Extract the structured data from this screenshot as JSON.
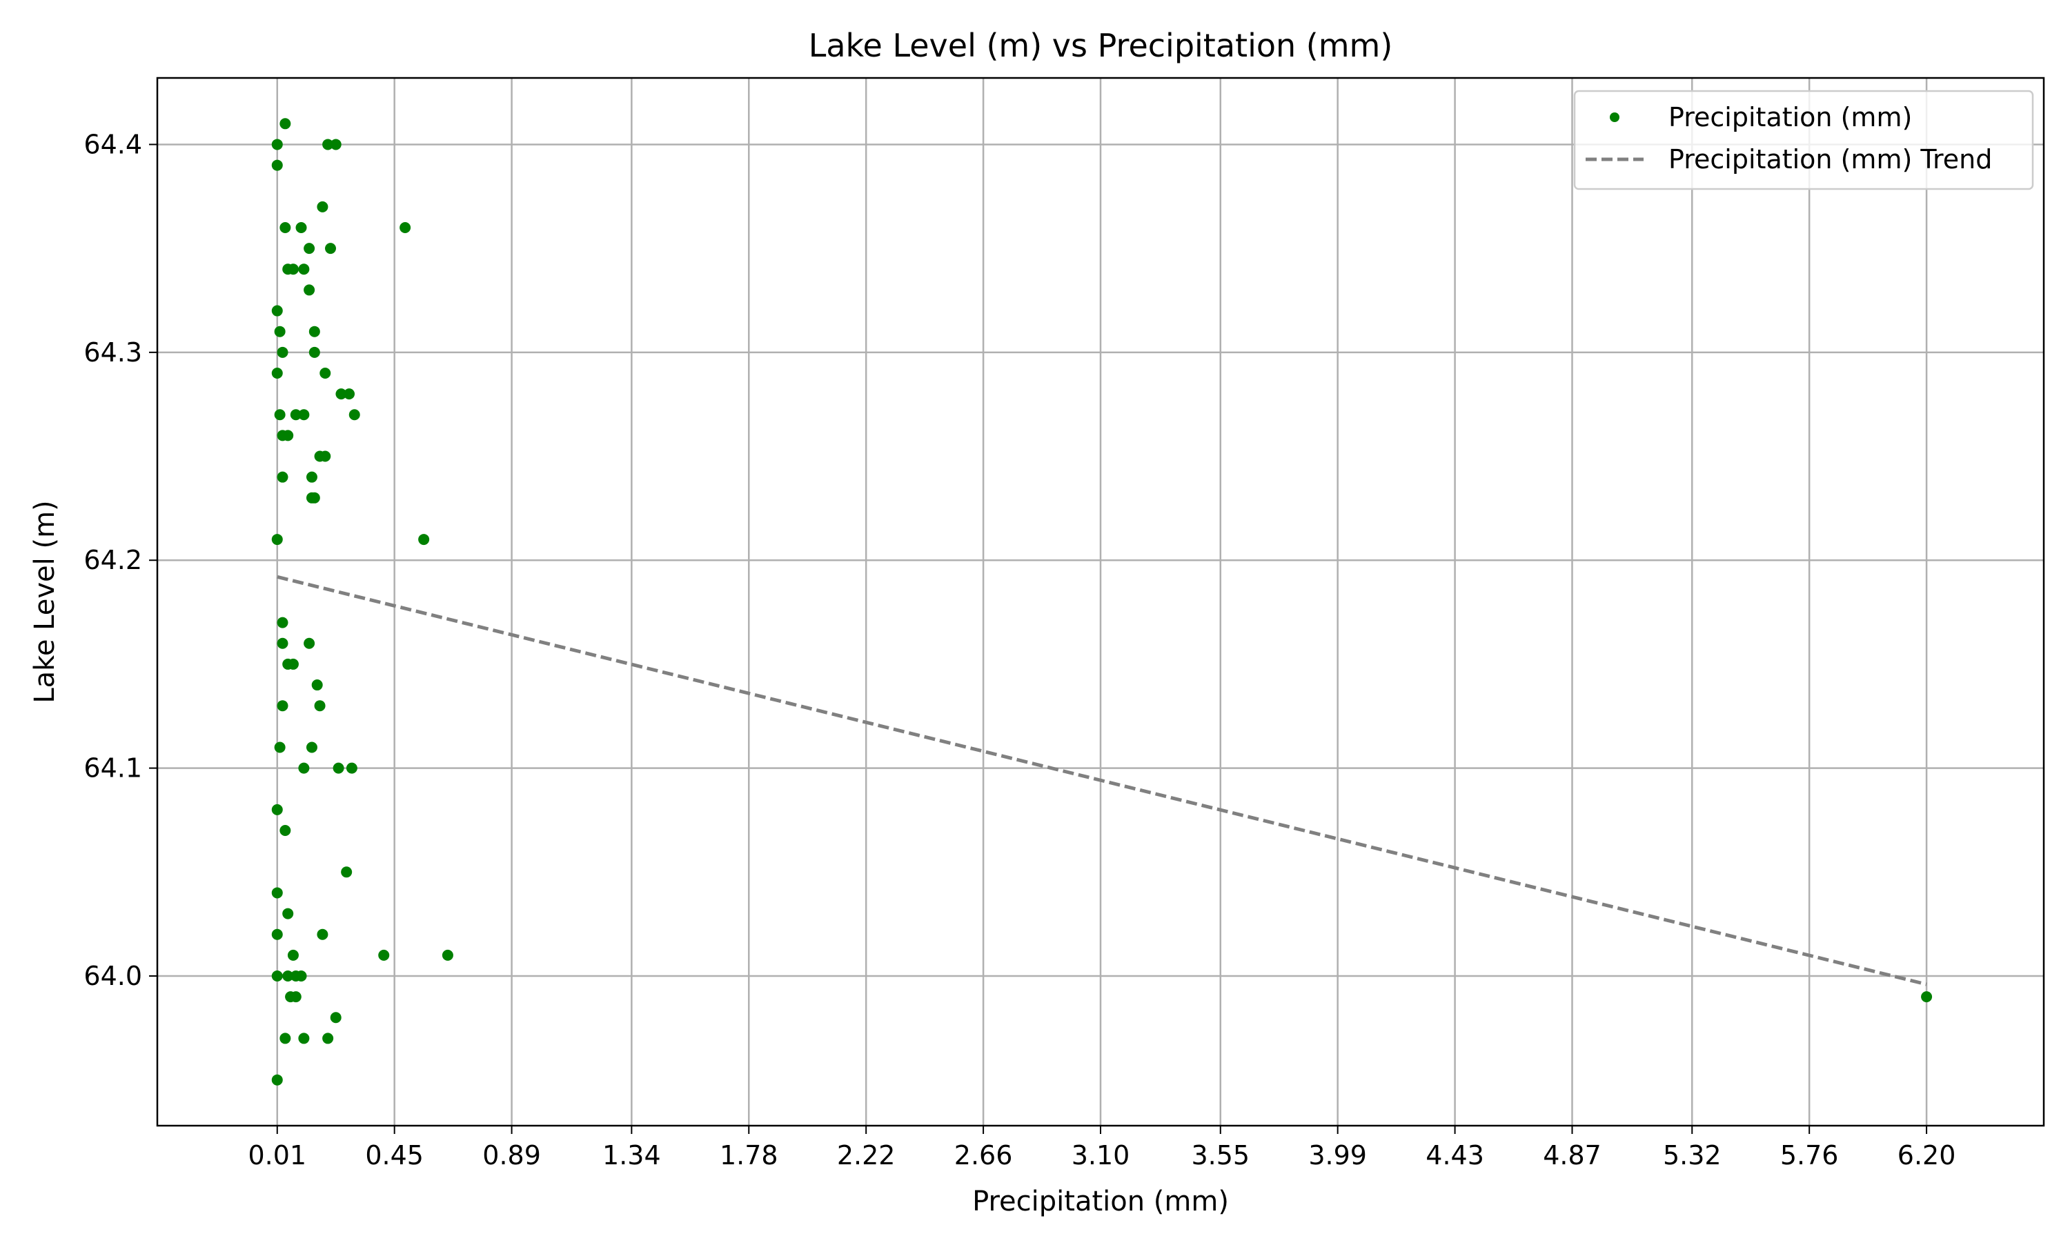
{
  "chart_data": {
    "type": "scatter",
    "title": "Lake Level (m) vs Precipitation (mm)",
    "xlabel": "Precipitation (mm)",
    "ylabel": "Lake Level (m)",
    "xlim": [
      -0.44,
      6.64
    ],
    "ylim": [
      63.928,
      64.432
    ],
    "x_ticks": [
      0.01,
      0.45,
      0.89,
      1.34,
      1.78,
      2.22,
      2.66,
      3.1,
      3.55,
      3.99,
      4.43,
      4.87,
      5.32,
      5.76,
      6.2
    ],
    "x_tick_labels": [
      "0.01",
      "0.45",
      "0.89",
      "1.34",
      "1.78",
      "2.22",
      "2.66",
      "3.10",
      "3.55",
      "3.99",
      "4.43",
      "4.87",
      "5.32",
      "5.76",
      "6.20"
    ],
    "y_ticks": [
      64.0,
      64.1,
      64.2,
      64.3,
      64.4
    ],
    "y_tick_labels": [
      "64.0",
      "64.1",
      "64.2",
      "64.3",
      "64.4"
    ],
    "grid": true,
    "legend_position": "top-right",
    "series": [
      {
        "name": "Precipitation (mm)",
        "type": "scatter",
        "color": "#008000",
        "points": [
          [
            0.04,
            64.41
          ],
          [
            0.01,
            64.4
          ],
          [
            0.2,
            64.4
          ],
          [
            0.23,
            64.4
          ],
          [
            0.01,
            64.39
          ],
          [
            0.18,
            64.37
          ],
          [
            0.04,
            64.36
          ],
          [
            0.1,
            64.36
          ],
          [
            0.49,
            64.36
          ],
          [
            0.13,
            64.35
          ],
          [
            0.21,
            64.35
          ],
          [
            0.05,
            64.34
          ],
          [
            0.07,
            64.34
          ],
          [
            0.11,
            64.34
          ],
          [
            0.13,
            64.33
          ],
          [
            0.01,
            64.32
          ],
          [
            0.02,
            64.31
          ],
          [
            0.15,
            64.31
          ],
          [
            0.03,
            64.3
          ],
          [
            0.15,
            64.3
          ],
          [
            0.01,
            64.29
          ],
          [
            0.19,
            64.29
          ],
          [
            0.25,
            64.28
          ],
          [
            0.28,
            64.28
          ],
          [
            0.02,
            64.27
          ],
          [
            0.08,
            64.27
          ],
          [
            0.11,
            64.27
          ],
          [
            0.3,
            64.27
          ],
          [
            0.03,
            64.26
          ],
          [
            0.05,
            64.26
          ],
          [
            0.17,
            64.25
          ],
          [
            0.19,
            64.25
          ],
          [
            0.03,
            64.24
          ],
          [
            0.14,
            64.24
          ],
          [
            0.14,
            64.23
          ],
          [
            0.15,
            64.23
          ],
          [
            0.01,
            64.21
          ],
          [
            0.56,
            64.21
          ],
          [
            0.03,
            64.17
          ],
          [
            0.03,
            64.16
          ],
          [
            0.13,
            64.16
          ],
          [
            0.05,
            64.15
          ],
          [
            0.07,
            64.15
          ],
          [
            0.16,
            64.14
          ],
          [
            0.03,
            64.13
          ],
          [
            0.17,
            64.13
          ],
          [
            0.02,
            64.11
          ],
          [
            0.14,
            64.11
          ],
          [
            0.11,
            64.1
          ],
          [
            0.24,
            64.1
          ],
          [
            0.29,
            64.1
          ],
          [
            0.01,
            64.08
          ],
          [
            0.04,
            64.07
          ],
          [
            0.27,
            64.05
          ],
          [
            0.01,
            64.04
          ],
          [
            0.05,
            64.03
          ],
          [
            0.01,
            64.02
          ],
          [
            0.18,
            64.02
          ],
          [
            0.07,
            64.01
          ],
          [
            0.41,
            64.01
          ],
          [
            0.65,
            64.01
          ],
          [
            0.01,
            64.0
          ],
          [
            0.05,
            64.0
          ],
          [
            0.08,
            64.0
          ],
          [
            0.1,
            64.0
          ],
          [
            0.06,
            63.99
          ],
          [
            0.08,
            63.99
          ],
          [
            6.2,
            63.99
          ],
          [
            0.23,
            63.98
          ],
          [
            0.04,
            63.97
          ],
          [
            0.11,
            63.97
          ],
          [
            0.2,
            63.97
          ],
          [
            0.01,
            63.95
          ]
        ]
      },
      {
        "name": "Precipitation (mm) Trend",
        "type": "line",
        "style": "dashed",
        "color": "#808080",
        "points": [
          [
            0.01,
            64.192
          ],
          [
            6.2,
            63.996
          ]
        ]
      }
    ]
  }
}
